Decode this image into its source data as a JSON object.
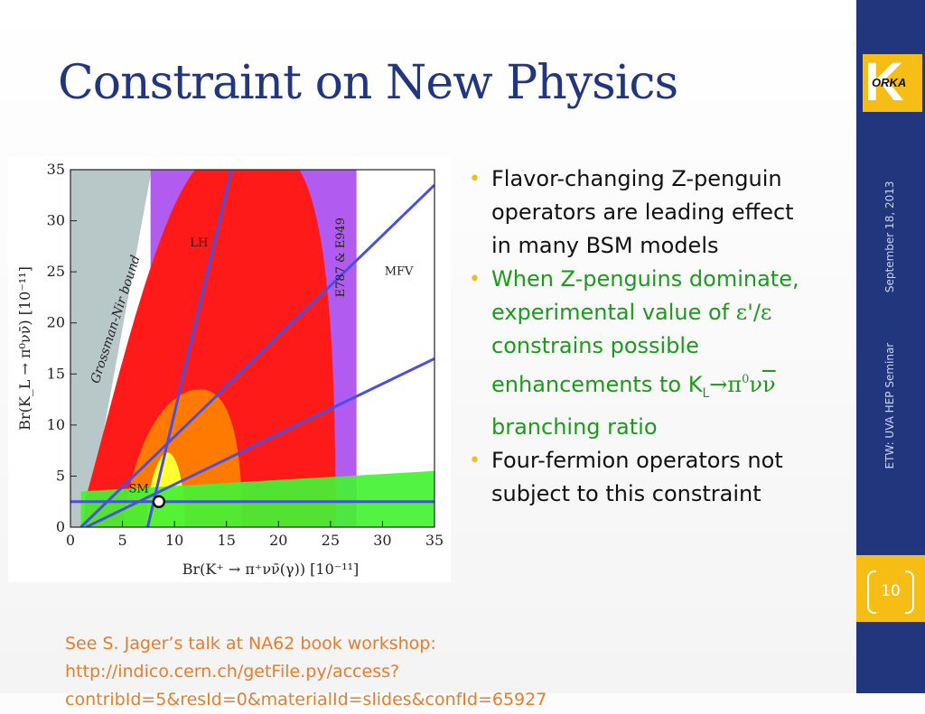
{
  "slide": {
    "title": "Constraint on New Physics",
    "footer_date": "September 18, 2013",
    "footer_event": "ETW: UVA HEP Seminar",
    "page_number": "10"
  },
  "logo": {
    "letter": "K",
    "text": "ORKA"
  },
  "bullets": {
    "b1": "Flavor-changing Z-penguin operators are leading effect in many BSM models",
    "b2_part1": "When Z-penguins dominate, experimental value of ",
    "b2_eps1": "ε",
    "b2_part2": "'/",
    "b2_eps2": "ε",
    "b2_part3": " constrains possible enhancements to K",
    "b2_sub": "L",
    "b2_arrow": "→π",
    "b2_sup": "0",
    "b2_nu": "ν",
    "b2_nubar": "ν",
    "b2_part4": " branching ratio",
    "b3": "Four-fermion operators not subject to this constraint"
  },
  "reference": {
    "line1": "See S. Jager’s talk at NA62 book workshop:",
    "line2": "http://indico.cern.ch/getFile.py/access?contribId=5&resId=0&materialId=slides&confId=65927"
  },
  "chart_data": {
    "type": "scatter",
    "xlim": [
      0,
      35
    ],
    "ylim": [
      0,
      35
    ],
    "x_ticks": [
      "0",
      "5",
      "10",
      "15",
      "20",
      "25",
      "30",
      "35"
    ],
    "y_ticks": [
      "0",
      "5",
      "10",
      "15",
      "20",
      "25",
      "30",
      "35"
    ],
    "xlabel": "Br(K⁺ → π⁺νν̄(γ))   [10⁻¹¹]",
    "ylabel": "Br(K_L → π⁰νν̄)   [10⁻¹¹]",
    "region_labels": [
      "Grossman-Nir bound",
      "E787 & E949",
      "LH",
      "MFV",
      "SM"
    ],
    "sm_point": {
      "x": 8.5,
      "y": 2.5
    },
    "colors": {
      "grossman_nir": "#b8c8c8",
      "e787": "#b15bf0",
      "red": "#ff1a1a",
      "orange": "#ff7a00",
      "yellow": "#ffff33",
      "green": "#44f234",
      "line": "#4b4ee2"
    }
  }
}
